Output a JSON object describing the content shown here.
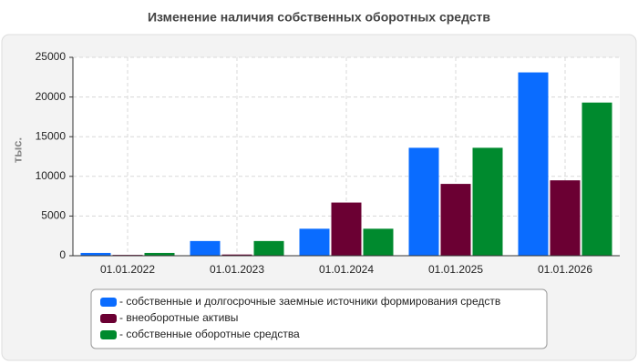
{
  "chart_data": {
    "type": "bar",
    "title": "Изменение наличия собственных оборотных средств",
    "y_label": "тыс.",
    "categories": [
      "01.01.2022",
      "01.01.2023",
      "01.01.2024",
      "01.01.2025",
      "01.01.2026"
    ],
    "series": [
      {
        "name": "- собственные и долгосрочные заемные источники формирования средств",
        "color": "#0a6cff",
        "values": [
          350,
          1850,
          3400,
          13600,
          23100
        ]
      },
      {
        "name": "- внеоборотные активы",
        "color": "#6b0033",
        "values": [
          100,
          150,
          6700,
          9050,
          9500
        ]
      },
      {
        "name": "- собственные оборотные средства",
        "color": "#008a2e",
        "values": [
          350,
          1850,
          3400,
          13600,
          19300
        ]
      }
    ],
    "ylim": [
      0,
      25000
    ],
    "yticks": [
      0,
      5000,
      10000,
      15000,
      20000,
      25000
    ],
    "grid": true
  }
}
